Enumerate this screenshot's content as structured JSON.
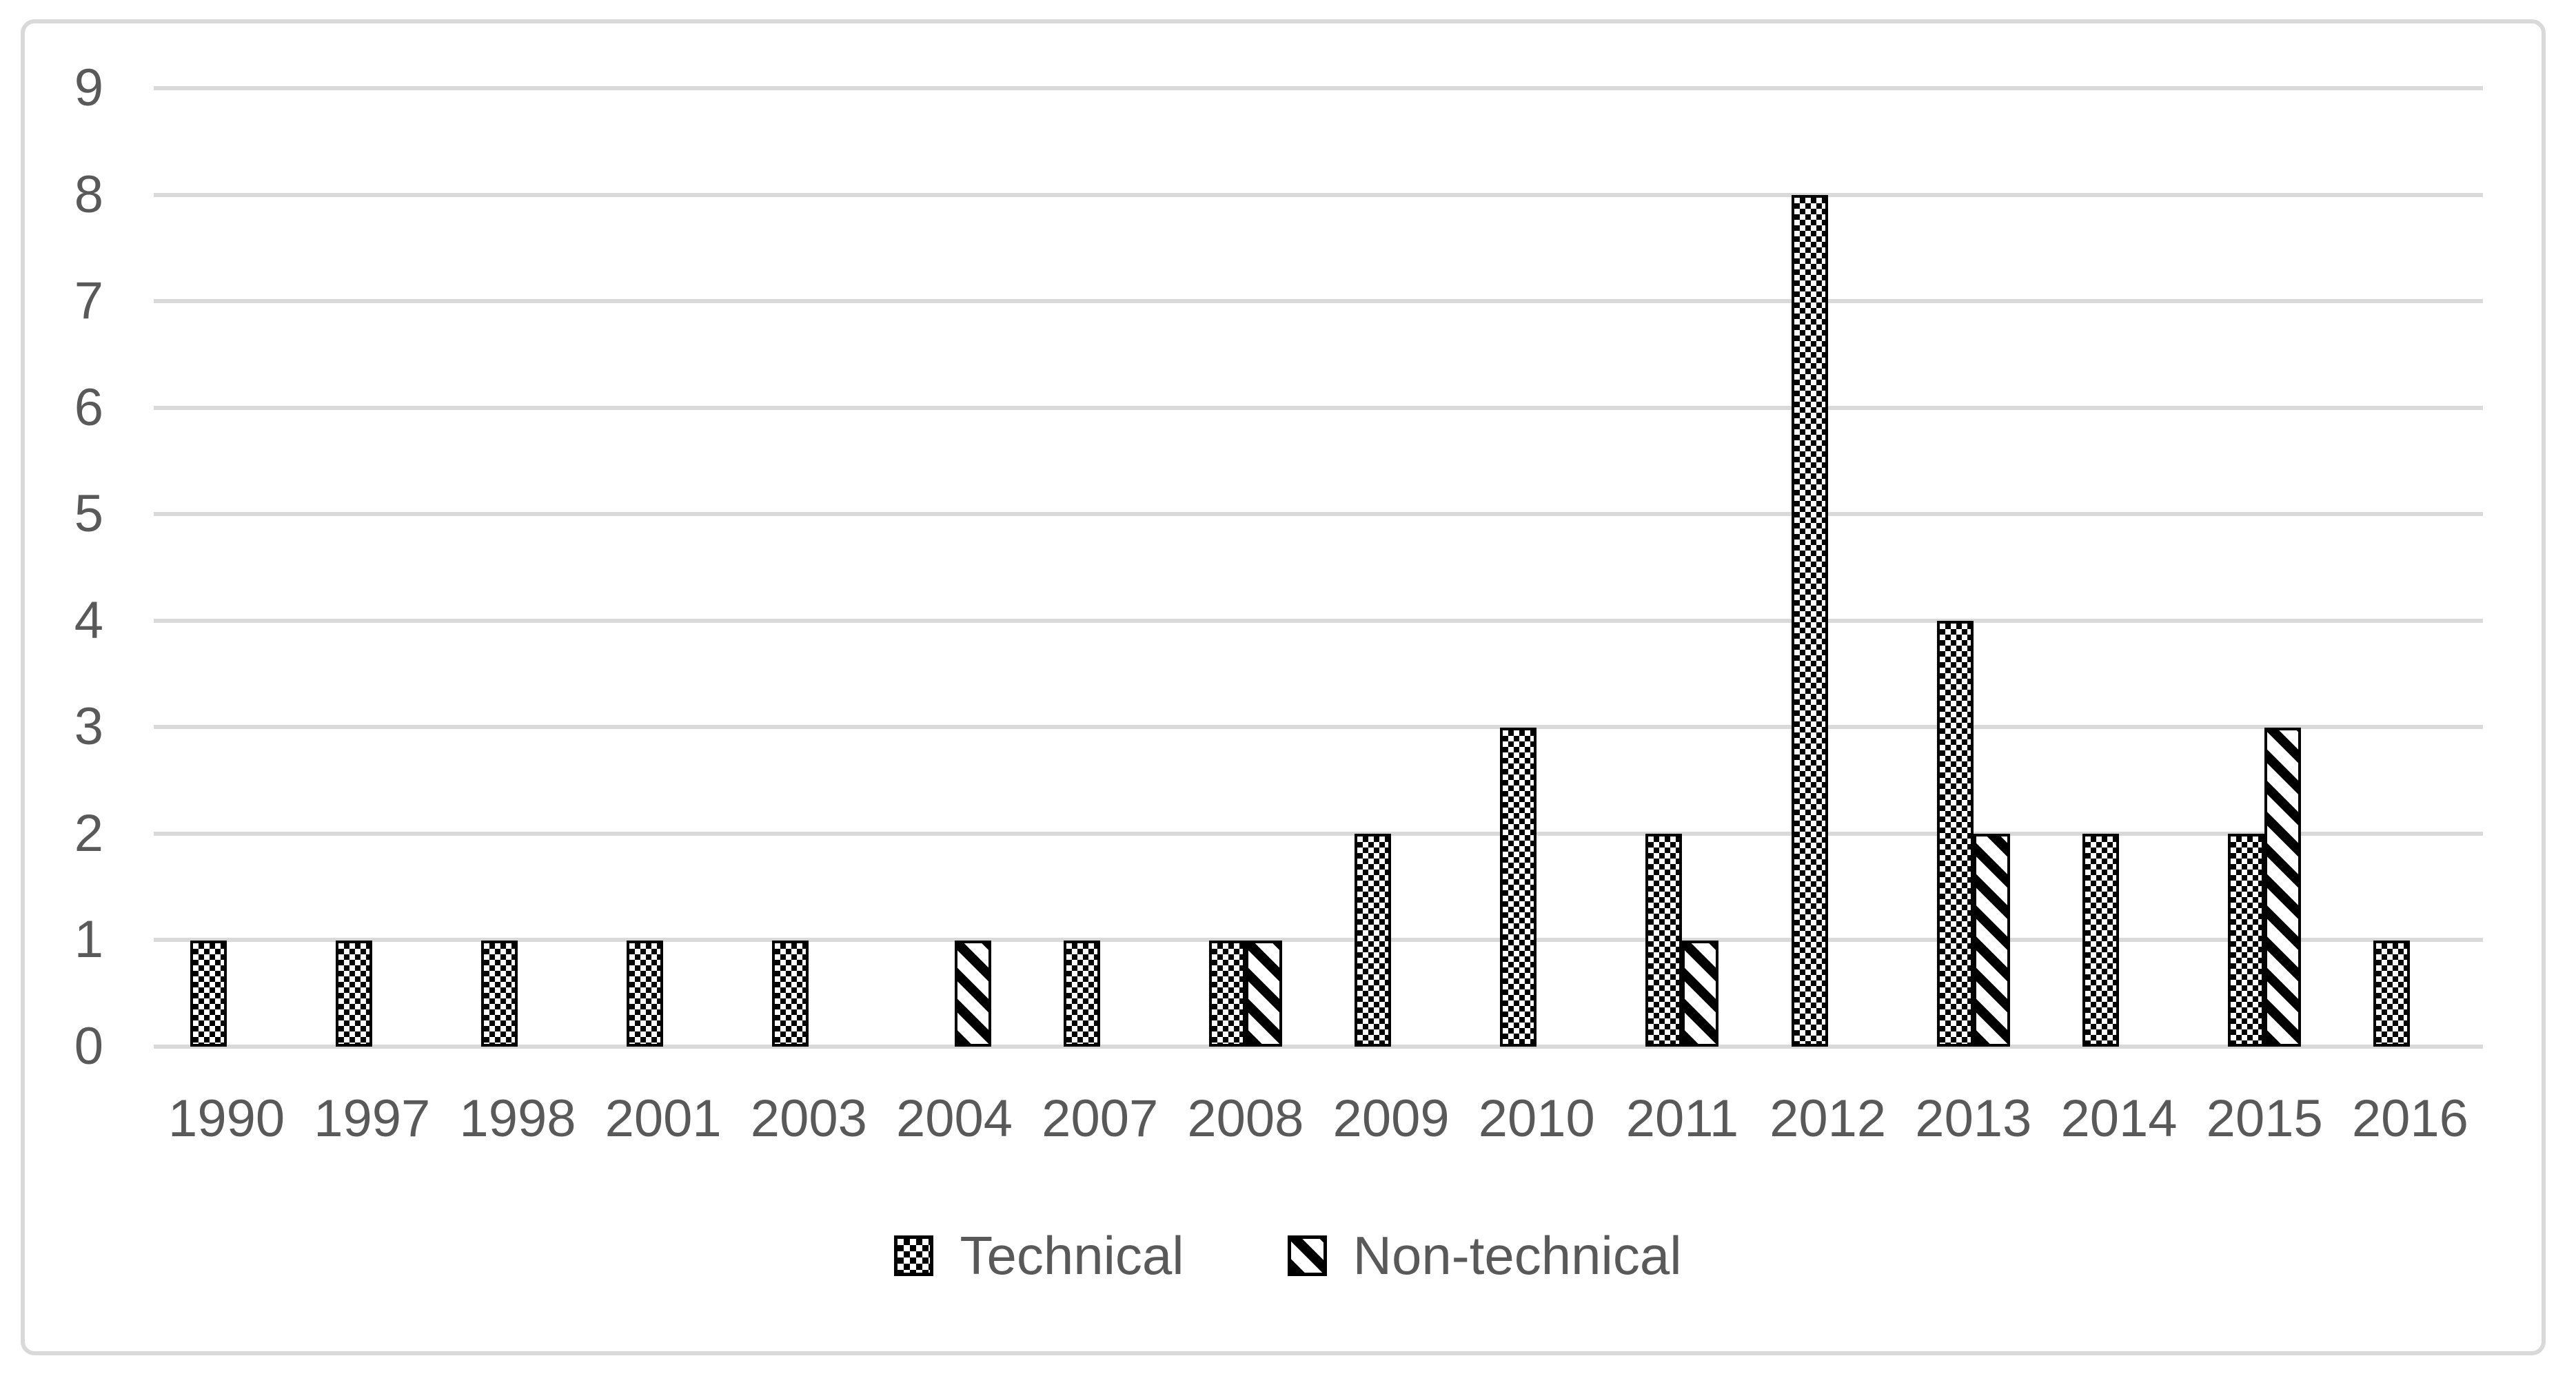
{
  "chart_data": {
    "type": "bar",
    "title": "",
    "categories": [
      "1990",
      "1997",
      "1998",
      "2001",
      "2003",
      "2004",
      "2007",
      "2008",
      "2009",
      "2010",
      "2011",
      "2012",
      "2013",
      "2014",
      "2015",
      "2016"
    ],
    "series": [
      {
        "name": "Technical",
        "pattern": "checkerboard",
        "values": [
          1,
          1,
          1,
          1,
          1,
          0,
          1,
          1,
          2,
          3,
          2,
          8,
          4,
          2,
          2,
          1
        ]
      },
      {
        "name": "Non-technical",
        "pattern": "diagonal-stripes",
        "values": [
          0,
          0,
          0,
          0,
          0,
          1,
          0,
          1,
          0,
          0,
          1,
          0,
          2,
          0,
          3,
          0
        ]
      }
    ],
    "xlabel": "",
    "ylabel": "",
    "ylim": [
      0,
      9
    ],
    "yticks": [
      0,
      1,
      2,
      3,
      4,
      5,
      6,
      7,
      8,
      9
    ],
    "grid": "horizontal",
    "legend_position": "bottom"
  },
  "colors": {
    "bar_fill": "#000000",
    "bar_background": "#ffffff",
    "text": "#595959",
    "gridline": "#d9d9d9",
    "border": "#d9d9d9",
    "background": "#ffffff"
  }
}
